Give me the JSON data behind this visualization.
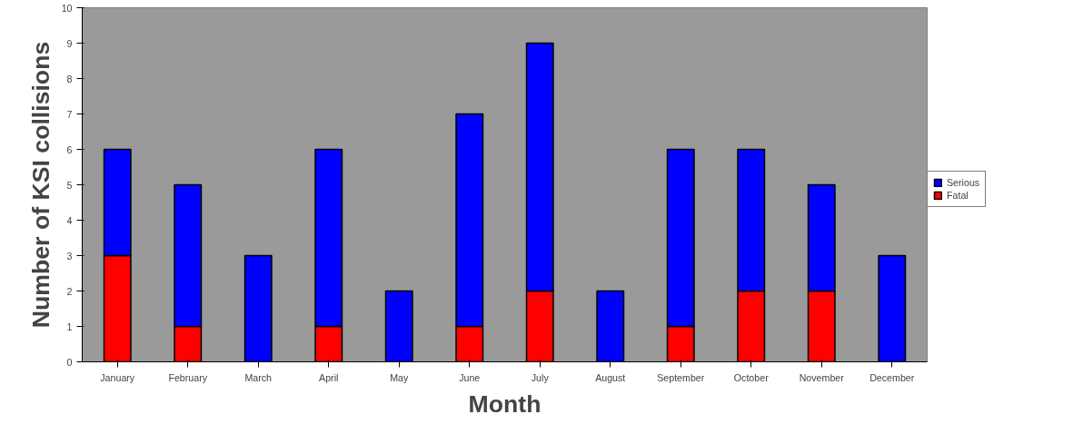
{
  "chart_data": {
    "type": "bar",
    "stacked": true,
    "xlabel": "Month",
    "ylabel": "Number of KSI collisions",
    "categories": [
      "January",
      "February",
      "March",
      "April",
      "May",
      "June",
      "July",
      "August",
      "September",
      "October",
      "November",
      "December"
    ],
    "series": [
      {
        "name": "Fatal",
        "color": "#ff0000",
        "values": [
          3,
          1,
          0,
          1,
          0,
          1,
          2,
          0,
          1,
          2,
          2,
          0
        ]
      },
      {
        "name": "Serious",
        "color": "#0000ff",
        "values": [
          3,
          4,
          3,
          5,
          2,
          6,
          7,
          2,
          5,
          4,
          3,
          3
        ]
      }
    ],
    "ylim": [
      0,
      10
    ],
    "yticks": [
      0,
      1,
      2,
      3,
      4,
      5,
      6,
      7,
      8,
      9,
      10
    ],
    "grid": false,
    "legend": "right"
  }
}
